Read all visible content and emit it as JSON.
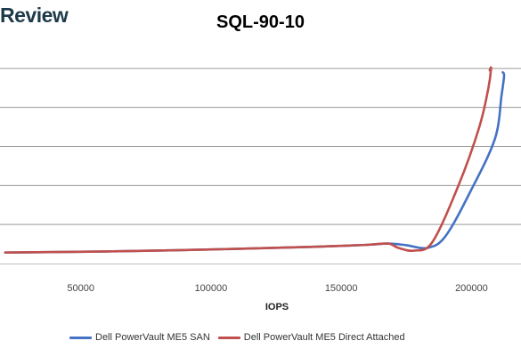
{
  "brand": "Review",
  "colors": {
    "san": "#4472c4",
    "direct": "#c0504d",
    "grid": "#9a9a9a"
  },
  "chart_data": {
    "type": "line",
    "title": "SQL-90-10",
    "xlabel": "IOPS",
    "ylabel": "",
    "x_ticks": [
      50000,
      100000,
      150000,
      200000
    ],
    "x_tick_labels": [
      "50000",
      "100000",
      "150000",
      "200000"
    ],
    "xlim": [
      19000,
      219000
    ],
    "ylim": [
      0,
      6
    ],
    "y_gridlines": [
      1,
      2,
      3,
      4,
      5
    ],
    "grid": true,
    "legend_position": "bottom",
    "series": [
      {
        "name": "Dell PowerVault ME5 SAN",
        "color": "#4472c4",
        "points": [
          [
            21000,
            0.28
          ],
          [
            60000,
            0.31
          ],
          [
            100000,
            0.36
          ],
          [
            140000,
            0.43
          ],
          [
            160000,
            0.48
          ],
          [
            168000,
            0.51
          ],
          [
            175000,
            0.47
          ],
          [
            183000,
            0.4
          ],
          [
            190000,
            0.7
          ],
          [
            200000,
            1.9
          ],
          [
            209000,
            3.2
          ],
          [
            211500,
            4.3
          ],
          [
            212500,
            4.8
          ],
          [
            212000,
            4.9
          ]
        ]
      },
      {
        "name": "Dell PowerVault ME5 Direct Attached",
        "color": "#c0504d",
        "points": [
          [
            21000,
            0.28
          ],
          [
            60000,
            0.31
          ],
          [
            100000,
            0.36
          ],
          [
            140000,
            0.43
          ],
          [
            160000,
            0.48
          ],
          [
            168000,
            0.51
          ],
          [
            172000,
            0.4
          ],
          [
            178000,
            0.33
          ],
          [
            185000,
            0.55
          ],
          [
            195000,
            2.0
          ],
          [
            203000,
            3.5
          ],
          [
            206500,
            4.5
          ],
          [
            207500,
            5.0
          ],
          [
            207000,
            4.95
          ]
        ]
      }
    ]
  }
}
